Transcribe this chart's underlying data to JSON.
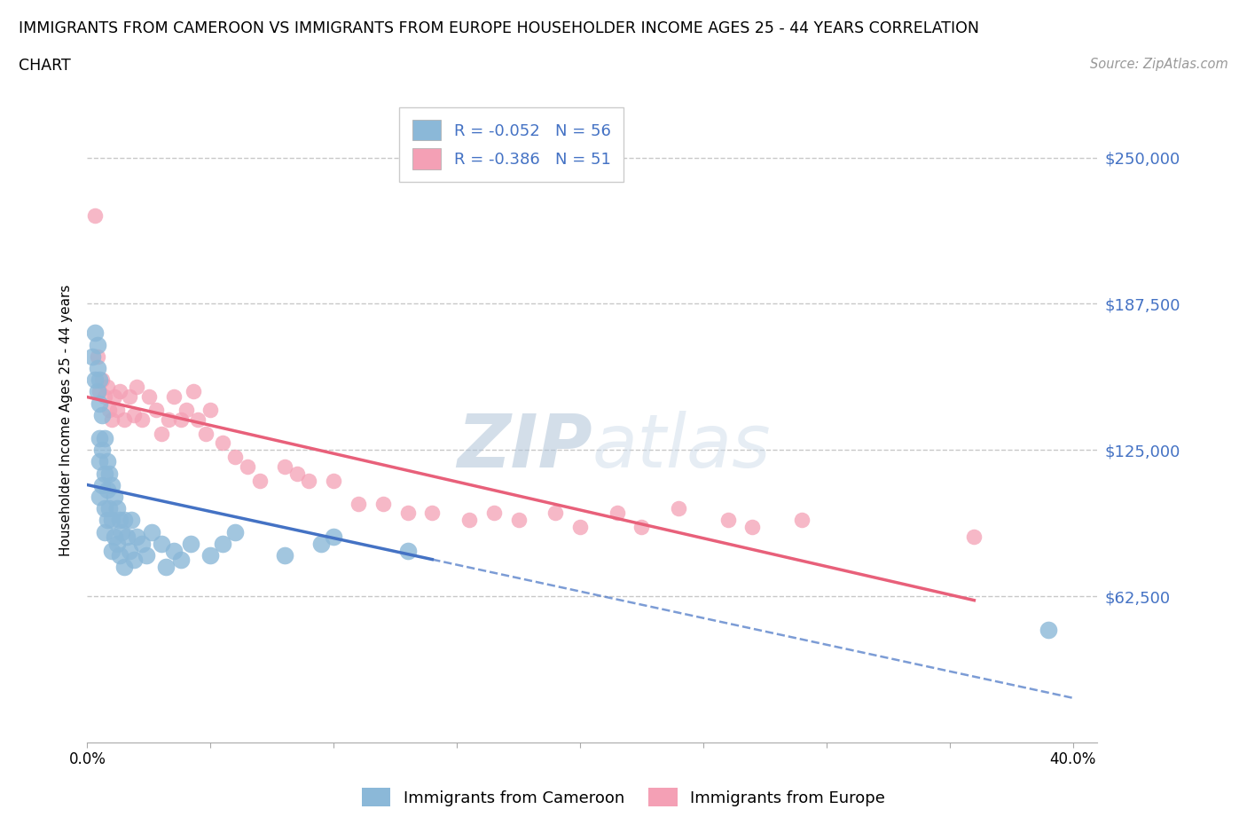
{
  "title_line1": "IMMIGRANTS FROM CAMEROON VS IMMIGRANTS FROM EUROPE HOUSEHOLDER INCOME AGES 25 - 44 YEARS CORRELATION",
  "title_line2": "CHART",
  "source": "Source: ZipAtlas.com",
  "ylabel": "Householder Income Ages 25 - 44 years",
  "xlim": [
    0,
    0.41
  ],
  "ylim": [
    0,
    275000
  ],
  "yticks": [
    0,
    62500,
    125000,
    187500,
    250000
  ],
  "ytick_labels": [
    "",
    "$62,500",
    "$125,000",
    "$187,500",
    "$250,000"
  ],
  "xticks": [
    0.0,
    0.05,
    0.1,
    0.15,
    0.2,
    0.25,
    0.3,
    0.35,
    0.4
  ],
  "xtick_labels": [
    "0.0%",
    "",
    "",
    "",
    "",
    "",
    "",
    "",
    "40.0%"
  ],
  "legend_cameroon_R": "R = -0.052",
  "legend_cameroon_N": "N = 56",
  "legend_europe_R": "R = -0.386",
  "legend_europe_N": "N = 51",
  "color_cameroon": "#8bb8d8",
  "color_europe": "#f4a0b5",
  "line_color_cameroon": "#4472c4",
  "line_color_europe": "#e8607a",
  "grid_color": "#c8c8c8",
  "axis_color": "#4472c4",
  "cameroon_x": [
    0.002,
    0.003,
    0.003,
    0.004,
    0.004,
    0.004,
    0.005,
    0.005,
    0.005,
    0.005,
    0.005,
    0.006,
    0.006,
    0.006,
    0.007,
    0.007,
    0.007,
    0.007,
    0.008,
    0.008,
    0.008,
    0.009,
    0.009,
    0.01,
    0.01,
    0.01,
    0.011,
    0.011,
    0.012,
    0.012,
    0.013,
    0.013,
    0.014,
    0.015,
    0.015,
    0.016,
    0.017,
    0.018,
    0.019,
    0.02,
    0.022,
    0.024,
    0.026,
    0.03,
    0.032,
    0.035,
    0.038,
    0.042,
    0.05,
    0.055,
    0.06,
    0.08,
    0.095,
    0.1,
    0.13,
    0.39
  ],
  "cameroon_y": [
    165000,
    175000,
    155000,
    170000,
    160000,
    150000,
    155000,
    145000,
    130000,
    120000,
    105000,
    140000,
    125000,
    110000,
    130000,
    115000,
    100000,
    90000,
    120000,
    108000,
    95000,
    115000,
    100000,
    110000,
    95000,
    82000,
    105000,
    88000,
    100000,
    85000,
    95000,
    80000,
    90000,
    95000,
    75000,
    88000,
    82000,
    95000,
    78000,
    88000,
    85000,
    80000,
    90000,
    85000,
    75000,
    82000,
    78000,
    85000,
    80000,
    85000,
    90000,
    80000,
    85000,
    88000,
    82000,
    48000
  ],
  "europe_x": [
    0.003,
    0.004,
    0.005,
    0.006,
    0.007,
    0.008,
    0.009,
    0.01,
    0.011,
    0.012,
    0.013,
    0.015,
    0.017,
    0.019,
    0.02,
    0.022,
    0.025,
    0.028,
    0.03,
    0.033,
    0.035,
    0.038,
    0.04,
    0.043,
    0.045,
    0.048,
    0.05,
    0.055,
    0.06,
    0.065,
    0.07,
    0.08,
    0.085,
    0.09,
    0.1,
    0.11,
    0.12,
    0.13,
    0.14,
    0.155,
    0.165,
    0.175,
    0.19,
    0.2,
    0.215,
    0.225,
    0.24,
    0.26,
    0.27,
    0.29,
    0.36
  ],
  "europe_y": [
    225000,
    165000,
    150000,
    155000,
    148000,
    152000,
    142000,
    138000,
    148000,
    142000,
    150000,
    138000,
    148000,
    140000,
    152000,
    138000,
    148000,
    142000,
    132000,
    138000,
    148000,
    138000,
    142000,
    150000,
    138000,
    132000,
    142000,
    128000,
    122000,
    118000,
    112000,
    118000,
    115000,
    112000,
    112000,
    102000,
    102000,
    98000,
    98000,
    95000,
    98000,
    95000,
    98000,
    92000,
    98000,
    92000,
    100000,
    95000,
    92000,
    95000,
    88000
  ],
  "cam_trend_x_start": 0.0,
  "cam_trend_x_solid_end": 0.14,
  "cam_trend_x_dash_end": 0.4,
  "eur_trend_x_start": 0.0,
  "eur_trend_x_end": 0.36
}
